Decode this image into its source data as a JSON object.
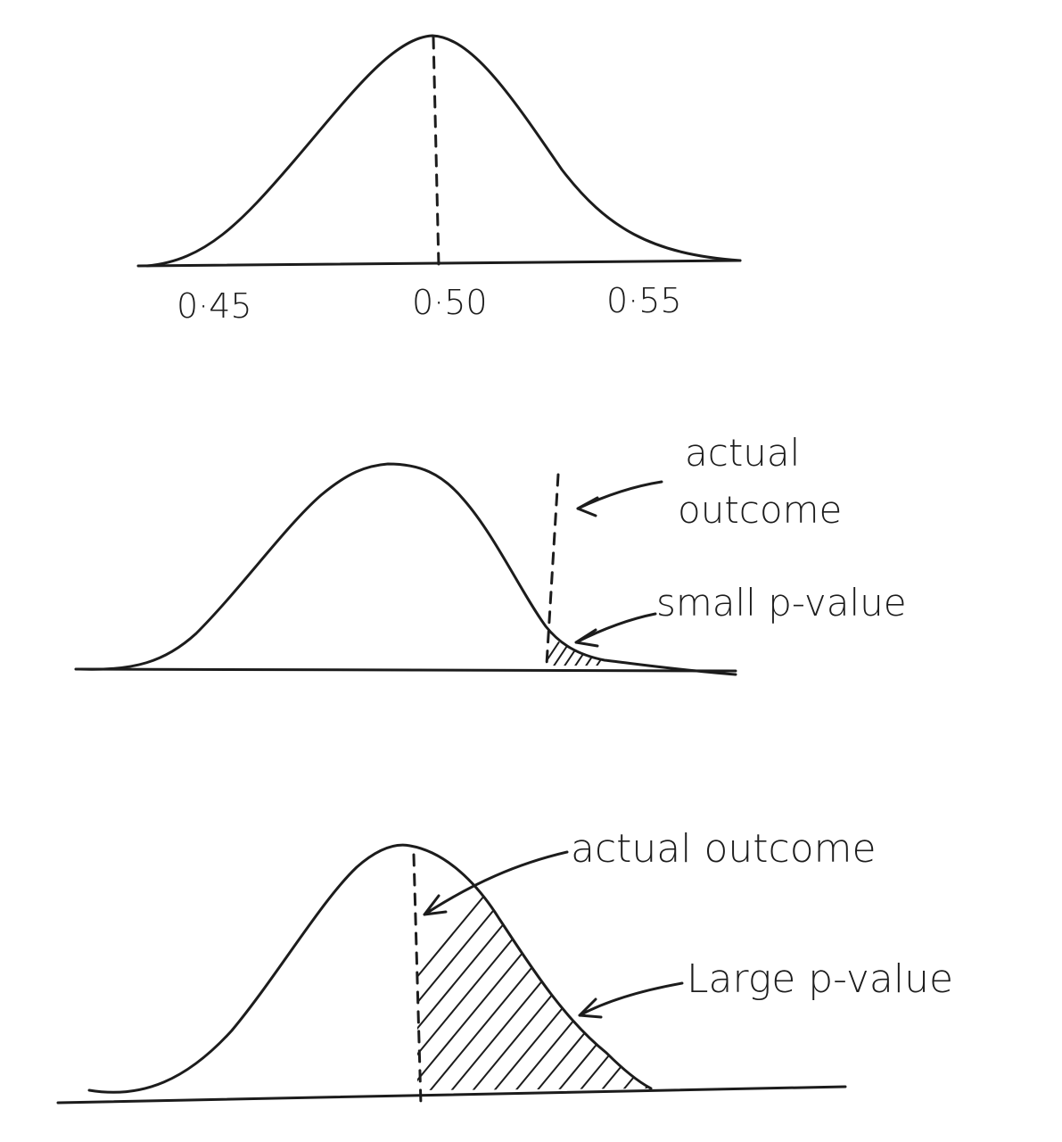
{
  "diagram": {
    "panel_top": {
      "tick_labels": [
        "0·45",
        "0·50",
        "0·55"
      ]
    },
    "panel_middle": {
      "annotation_outcome_line1": "actual",
      "annotation_outcome_line2": "outcome",
      "annotation_pvalue": "small p-value"
    },
    "panel_bottom": {
      "annotation_outcome": "actual outcome",
      "annotation_pvalue": "Large p-value"
    }
  }
}
